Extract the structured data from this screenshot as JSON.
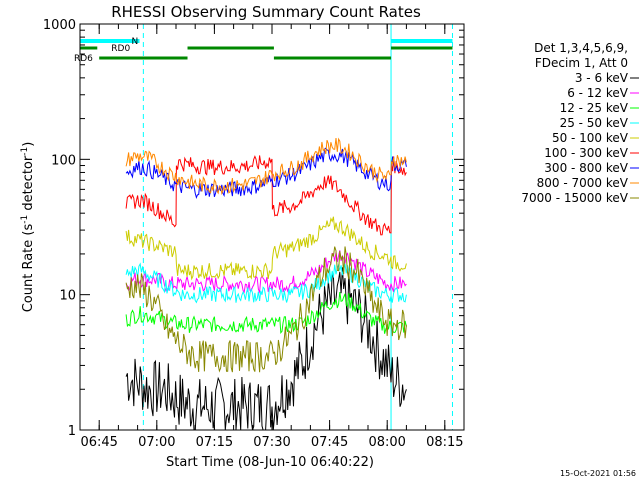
{
  "chart_data": {
    "type": "line",
    "title": "RHESSI Observing Summary Count Rates",
    "xlabel": "Start Time (08-Jun-10 06:40:22)",
    "ylabel_main": "Count Rate (s",
    "ylabel_sup1": "-1",
    "ylabel_mid": " detector",
    "ylabel_sup2": "-1",
    "ylabel_end": ")",
    "x_unit": "minutes after 06:40",
    "xlim": [
      0,
      100
    ],
    "ylim": [
      1,
      1000
    ],
    "yscale": "log",
    "x_ticks": [
      {
        "value": 5,
        "label": "06:45"
      },
      {
        "value": 20,
        "label": "07:00"
      },
      {
        "value": 35,
        "label": "07:15"
      },
      {
        "value": 50,
        "label": "07:30"
      },
      {
        "value": 65,
        "label": "07:45"
      },
      {
        "value": 80,
        "label": "08:00"
      },
      {
        "value": 95,
        "label": "08:15"
      }
    ],
    "y_ticks": [
      {
        "value": 1,
        "label": "1"
      },
      {
        "value": 10,
        "label": "10"
      },
      {
        "value": 100,
        "label": "100"
      },
      {
        "value": 1000,
        "label": "1000"
      }
    ],
    "legend_header": [
      "Det 1,3,4,5,6,9,",
      "FDecim 1, Att 0"
    ],
    "legend_position": "right",
    "series": [
      {
        "name": "3 - 6 keV",
        "color": "#000000",
        "x": [
          12,
          14,
          16,
          18,
          20,
          22,
          24,
          27,
          30,
          33,
          35,
          36,
          40,
          44,
          48,
          50,
          52,
          55,
          58,
          60,
          62,
          64,
          66,
          68,
          70,
          72,
          74,
          76,
          78,
          80,
          81,
          82,
          84,
          85
        ],
        "y": [
          2.5,
          2.3,
          2.2,
          2.0,
          2.0,
          2.0,
          1.8,
          1.6,
          1.5,
          1.5,
          1.5,
          1.5,
          1.5,
          1.5,
          1.5,
          1.5,
          1.8,
          2.3,
          3.2,
          4.8,
          6.5,
          8.0,
          9.2,
          9.8,
          9.2,
          8.0,
          6.5,
          5.0,
          3.8,
          3.0,
          2.5,
          2.4,
          2.2,
          2.0
        ]
      },
      {
        "name": "6 - 12 keV",
        "color": "#ff00ff",
        "x": [
          12,
          14,
          16,
          18,
          20,
          22,
          24,
          27,
          30,
          33,
          35,
          36,
          40,
          44,
          48,
          50,
          52,
          55,
          58,
          60,
          62,
          64,
          66,
          68,
          70,
          72,
          74,
          76,
          78,
          80,
          81,
          82,
          84,
          85
        ],
        "y": [
          12,
          13,
          13,
          13,
          13,
          12,
          12,
          12,
          12,
          12,
          12,
          12,
          12,
          12,
          12,
          12,
          12,
          12,
          13,
          14,
          15,
          17,
          19,
          20,
          19,
          17,
          15,
          14,
          13,
          12,
          12,
          12,
          12,
          12
        ]
      },
      {
        "name": "12 - 25 keV",
        "color": "#00ff00",
        "x": [
          12,
          14,
          16,
          18,
          20,
          22,
          24,
          27,
          30,
          33,
          35,
          36,
          40,
          44,
          48,
          50,
          52,
          55,
          58,
          60,
          62,
          64,
          66,
          68,
          70,
          72,
          74,
          76,
          78,
          80,
          81,
          82,
          84,
          85
        ],
        "y": [
          6.5,
          7,
          7.2,
          7,
          6.8,
          6.5,
          6.2,
          6,
          6,
          6,
          6,
          6,
          6,
          6,
          6,
          6,
          6,
          6,
          6.2,
          6.8,
          7.5,
          8.3,
          9,
          9.3,
          9,
          8.2,
          7.2,
          6.5,
          6,
          5.8,
          5.8,
          5.8,
          5.8,
          5.8
        ]
      },
      {
        "name": "25 - 50 keV",
        "color": "#00ffff",
        "x": [
          12,
          14,
          16,
          18,
          20,
          22,
          24,
          27,
          30,
          33,
          35,
          36,
          40,
          44,
          48,
          50,
          52,
          55,
          58,
          60,
          62,
          64,
          66,
          68,
          70,
          72,
          74,
          76,
          78,
          80,
          81,
          82,
          84,
          85
        ],
        "y": [
          14,
          15,
          15,
          14,
          13,
          12,
          11,
          10,
          10,
          10,
          10,
          10,
          10,
          10,
          10,
          10,
          10,
          10,
          10.5,
          11,
          12,
          13.5,
          14.5,
          15,
          14.5,
          13.5,
          12,
          11,
          10.5,
          10,
          10,
          10,
          10,
          10
        ]
      },
      {
        "name": "50 - 100 keV",
        "color": "#cccc00",
        "x": [
          12,
          14,
          16,
          18,
          20,
          22,
          24,
          25,
          25.1,
          27,
          30,
          33,
          35,
          36,
          40,
          44,
          48,
          50,
          50.1,
          52,
          55,
          58,
          60,
          62,
          64,
          66,
          68,
          70,
          72,
          74,
          76,
          78,
          80,
          81,
          81.1,
          82,
          84,
          85
        ],
        "y": [
          27,
          26,
          25,
          24,
          23,
          22,
          21,
          21,
          15,
          15,
          15,
          15,
          15,
          15,
          15,
          15,
          15,
          15,
          20,
          21,
          22,
          24,
          26,
          28,
          31,
          33,
          32,
          29,
          26,
          23,
          21,
          20,
          19,
          18,
          18,
          17,
          17,
          17
        ]
      },
      {
        "name": "100 - 300 keV",
        "color": "#ff0000",
        "x": [
          12,
          14,
          16,
          18,
          20,
          22,
          24,
          25,
          25.1,
          27,
          30,
          33,
          35,
          36,
          40,
          44,
          48,
          50,
          50.1,
          52,
          55,
          58,
          60,
          62,
          64,
          66,
          68,
          70,
          72,
          74,
          76,
          78,
          80,
          81,
          81.1,
          82,
          84,
          85
        ],
        "y": [
          46,
          49,
          50,
          47,
          43,
          39,
          35,
          33,
          95,
          93,
          90,
          88,
          88,
          88,
          88,
          90,
          95,
          100,
          42,
          43,
          45,
          50,
          56,
          63,
          68,
          65,
          58,
          50,
          43,
          38,
          34,
          31,
          30,
          29,
          95,
          90,
          85,
          80
        ]
      },
      {
        "name": "300 - 800 keV",
        "color": "#0000ff",
        "x": [
          12,
          14,
          16,
          18,
          20,
          22,
          24,
          27,
          30,
          33,
          35,
          36,
          40,
          44,
          48,
          50,
          52,
          55,
          58,
          60,
          62,
          64,
          66,
          68,
          70,
          72,
          74,
          76,
          78,
          80,
          81,
          81.1,
          82,
          84,
          85
        ],
        "y": [
          80,
          86,
          88,
          84,
          78,
          72,
          66,
          62,
          60,
          60,
          60,
          60,
          60,
          62,
          66,
          70,
          72,
          76,
          84,
          92,
          100,
          107,
          110,
          107,
          100,
          90,
          82,
          74,
          69,
          66,
          65,
          95,
          92,
          90,
          88
        ]
      },
      {
        "name": "800 - 7000 keV",
        "color": "#ff8800",
        "x": [
          12,
          14,
          16,
          18,
          20,
          22,
          24,
          27,
          30,
          33,
          35,
          36,
          40,
          44,
          48,
          50,
          52,
          55,
          58,
          60,
          62,
          64,
          66,
          68,
          70,
          72,
          74,
          76,
          78,
          80,
          81,
          81.1,
          82,
          84,
          85
        ],
        "y": [
          98,
          104,
          106,
          101,
          93,
          85,
          77,
          70,
          66,
          64,
          64,
          64,
          64,
          66,
          72,
          78,
          81,
          86,
          95,
          106,
          116,
          124,
          127,
          123,
          114,
          102,
          92,
          83,
          77,
          74,
          72,
          102,
          100,
          97,
          95
        ]
      },
      {
        "name": "7000 - 15000 keV",
        "color": "#888800",
        "x": [
          12,
          14,
          16,
          18,
          20,
          22,
          24,
          27,
          30,
          33,
          35,
          36,
          40,
          44,
          48,
          50,
          52,
          55,
          58,
          60,
          62,
          64,
          66,
          68,
          70,
          72,
          74,
          76,
          78,
          80,
          81,
          82,
          84,
          85
        ],
        "y": [
          11,
          12,
          11,
          10,
          8,
          6,
          5,
          4,
          3.5,
          3.5,
          3.5,
          3.5,
          3.5,
          3.5,
          3.5,
          3.5,
          4,
          5,
          7,
          9.5,
          12.5,
          15.5,
          17.5,
          18,
          17,
          14.5,
          11.5,
          9,
          7.3,
          6.3,
          6,
          6,
          6,
          6
        ]
      }
    ],
    "annotations": {
      "night": {
        "label": "N",
        "color": "#00ffff",
        "segments": [
          [
            0,
            15.5
          ],
          [
            81,
            97
          ]
        ]
      },
      "rd0": {
        "label": "RD0",
        "color": "#008800",
        "segments": [
          [
            0,
            4.5
          ],
          [
            28,
            50.5
          ],
          [
            81,
            97
          ]
        ]
      },
      "rd6": {
        "label": "RD6",
        "color": "#008800",
        "segments": [
          [
            5,
            28
          ],
          [
            50.5,
            81
          ]
        ]
      },
      "solid_lines": [
        0,
        81
      ],
      "dashed_lines": [
        16.5,
        97
      ]
    }
  },
  "footer": {
    "timestamp": "15-Oct-2021 01:56"
  }
}
